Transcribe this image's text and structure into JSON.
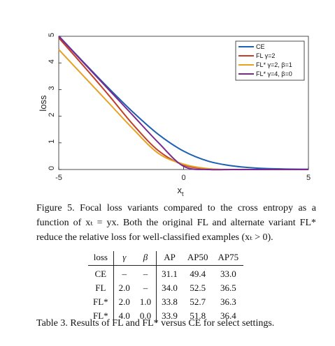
{
  "chart_data": {
    "type": "line",
    "xlabel": "x",
    "xlabel_sub": "t",
    "ylabel": "loss",
    "xlim": [
      -5,
      5
    ],
    "ylim": [
      0,
      5
    ],
    "x_ticks": [
      "-5",
      "0",
      "5"
    ],
    "y_ticks": [
      "0",
      "1",
      "2",
      "3",
      "4",
      "5"
    ],
    "legend_position": "top-right",
    "series": [
      {
        "name": "CE",
        "color": "#1f5fb4",
        "x": [
          -5,
          -4,
          -3,
          -2,
          -1,
          0,
          1,
          2,
          3,
          4,
          5
        ],
        "y": [
          5.01,
          4.02,
          3.05,
          2.13,
          1.31,
          0.69,
          0.31,
          0.13,
          0.05,
          0.02,
          0.01
        ]
      },
      {
        "name": "FL γ=2",
        "color": "#c0402a",
        "x": [
          -5,
          -4,
          -3,
          -2,
          -1,
          0,
          1,
          2,
          3,
          4,
          5
        ],
        "y": [
          4.94,
          3.88,
          2.79,
          1.66,
          0.7,
          0.17,
          0.02,
          0.0,
          0.0,
          0.0,
          0.0
        ]
      },
      {
        "name": "FL* γ=2, β=1",
        "color": "#e8a023",
        "x": [
          -5,
          -4,
          -3,
          -2,
          -1,
          0,
          1,
          2,
          3,
          4,
          5
        ],
        "y": [
          4.5,
          3.5,
          2.5,
          1.5,
          0.6,
          0.2,
          0.03,
          0.0,
          0.0,
          0.0,
          0.0
        ]
      },
      {
        "name": "FL* γ=4, β=0",
        "color": "#7a2a8e",
        "x": [
          -5,
          -4,
          -3,
          -2,
          -1,
          0,
          1,
          2,
          3,
          4,
          5
        ],
        "y": [
          5.0,
          4.0,
          3.0,
          2.0,
          1.0,
          0.12,
          0.0,
          0.0,
          0.0,
          0.0,
          0.0
        ]
      }
    ]
  },
  "caption": {
    "label": "Figure 5.",
    "text": "Focal loss variants compared to the cross entropy as a function of xₜ = yx. Both the original FL and alternate variant FL* reduce the relative loss for well-classified examples (xₜ > 0)."
  },
  "table": {
    "headers": [
      "loss",
      "γ",
      "β",
      "AP",
      "AP50",
      "AP75"
    ],
    "rows": [
      [
        "CE",
        "–",
        "–",
        "31.1",
        "49.4",
        "33.0"
      ],
      [
        "FL",
        "2.0",
        "–",
        "34.0",
        "52.5",
        "36.5"
      ],
      [
        "FL*",
        "2.0",
        "1.0",
        "33.8",
        "52.7",
        "36.3"
      ],
      [
        "FL*",
        "4.0",
        "0.0",
        "33.9",
        "51.8",
        "36.4"
      ]
    ]
  },
  "table_caption": "Table 3. Results of FL and FL* versus CE for select settings."
}
